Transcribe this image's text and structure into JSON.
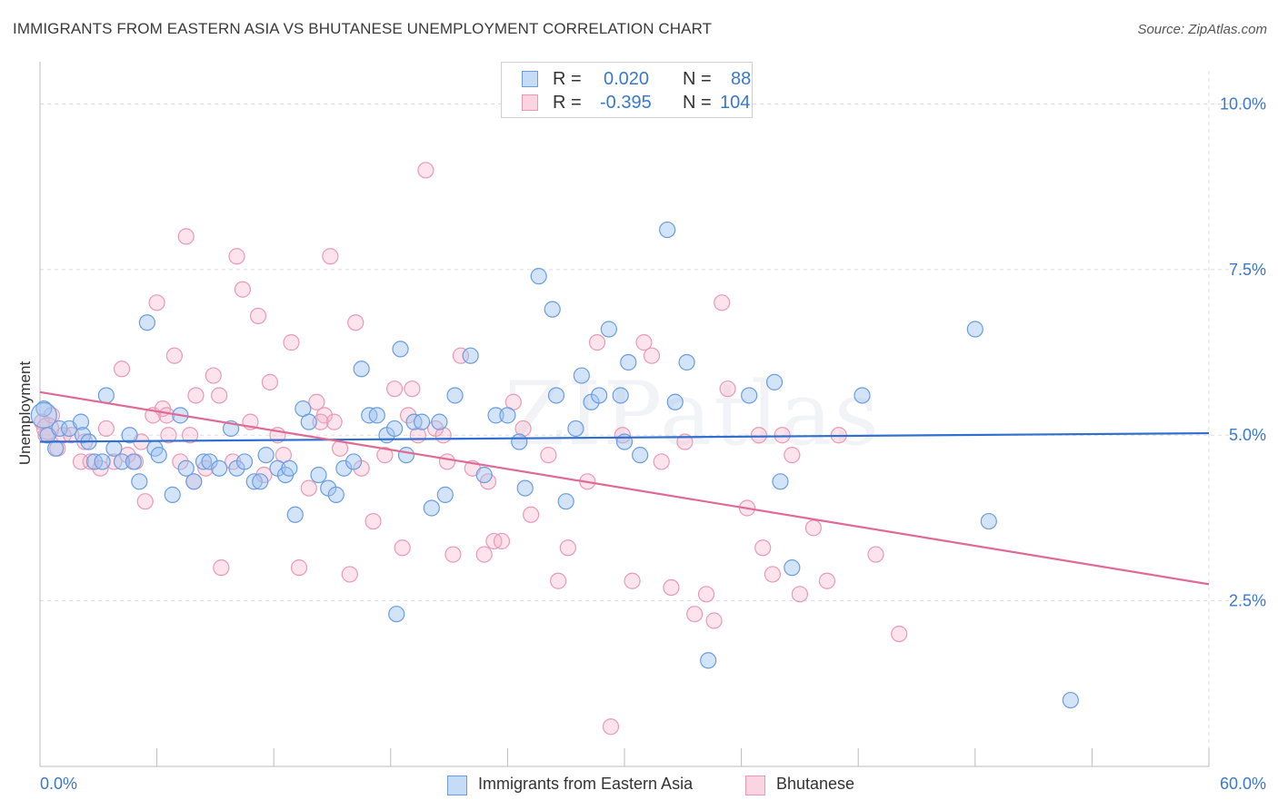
{
  "title": "IMMIGRANTS FROM EASTERN ASIA VS BHUTANESE UNEMPLOYMENT CORRELATION CHART",
  "source": "Source: ZipAtlas.com",
  "watermark": "ZIPatlas",
  "colors": {
    "blue_fill": "rgba(160,196,240,0.45)",
    "blue_stroke": "#6a9de0",
    "blue_line": "#2f6fd0",
    "pink_fill": "rgba(246,176,200,0.35)",
    "pink_stroke": "#e89ab4",
    "pink_line": "#e06a94",
    "grid": "#dedede",
    "tick_label": "#3a78d0"
  },
  "legend_top": [
    {
      "r_label": "R =",
      "r_value": "0.020",
      "n_label": "N =",
      "n_value": "88"
    },
    {
      "r_label": "R =",
      "r_value": "-0.395",
      "n_label": "N =",
      "n_value": "104"
    }
  ],
  "chart_data": {
    "type": "scatter",
    "title": "IMMIGRANTS FROM EASTERN ASIA VS BHUTANESE UNEMPLOYMENT CORRELATION CHART",
    "xlabel": "",
    "ylabel": "Unemployment",
    "xlim": [
      0,
      60
    ],
    "ylim": [
      0,
      10.5
    ],
    "x_tick_labels": [
      "0.0%",
      "60.0%"
    ],
    "y_ticks": [
      2.5,
      5.0,
      7.5,
      10.0
    ],
    "y_tick_labels": [
      "2.5%",
      "5.0%",
      "7.5%",
      "10.0%"
    ],
    "grid": true,
    "legend_position": "bottom",
    "series": [
      {
        "name": "Immigrants from Eastern Asia",
        "trend": {
          "x": [
            0,
            60
          ],
          "y": [
            4.9,
            5.03
          ]
        },
        "points": [
          [
            0.2,
            5.4
          ],
          [
            0.4,
            5.0
          ],
          [
            0.8,
            4.8
          ],
          [
            1.0,
            5.1
          ],
          [
            1.5,
            5.1
          ],
          [
            2.1,
            5.2
          ],
          [
            2.2,
            5.0
          ],
          [
            2.5,
            4.9
          ],
          [
            2.8,
            4.6
          ],
          [
            3.2,
            4.6
          ],
          [
            3.4,
            5.6
          ],
          [
            3.8,
            4.8
          ],
          [
            4.2,
            4.6
          ],
          [
            4.6,
            5.0
          ],
          [
            4.8,
            4.6
          ],
          [
            5.1,
            4.3
          ],
          [
            5.5,
            6.7
          ],
          [
            5.9,
            4.8
          ],
          [
            6.1,
            4.7
          ],
          [
            6.8,
            4.1
          ],
          [
            7.2,
            5.3
          ],
          [
            7.5,
            4.5
          ],
          [
            7.9,
            4.3
          ],
          [
            8.4,
            4.6
          ],
          [
            8.7,
            4.6
          ],
          [
            9.2,
            4.5
          ],
          [
            9.8,
            5.1
          ],
          [
            10.1,
            4.5
          ],
          [
            10.5,
            4.6
          ],
          [
            11.0,
            4.3
          ],
          [
            11.3,
            4.3
          ],
          [
            11.6,
            4.7
          ],
          [
            12.2,
            4.5
          ],
          [
            12.6,
            4.4
          ],
          [
            13.1,
            3.8
          ],
          [
            13.5,
            5.4
          ],
          [
            13.8,
            5.2
          ],
          [
            14.3,
            4.4
          ],
          [
            14.8,
            4.2
          ],
          [
            15.2,
            4.1
          ],
          [
            15.6,
            4.5
          ],
          [
            16.1,
            4.6
          ],
          [
            16.5,
            6.0
          ],
          [
            16.9,
            5.3
          ],
          [
            17.3,
            5.3
          ],
          [
            17.8,
            5.0
          ],
          [
            18.2,
            5.1
          ],
          [
            18.5,
            6.3
          ],
          [
            18.8,
            4.7
          ],
          [
            19.2,
            5.2
          ],
          [
            19.6,
            5.2
          ],
          [
            20.1,
            3.9
          ],
          [
            20.8,
            4.1
          ],
          [
            21.3,
            5.6
          ],
          [
            22.1,
            6.2
          ],
          [
            22.8,
            4.4
          ],
          [
            23.4,
            5.3
          ],
          [
            24.0,
            5.3
          ],
          [
            24.6,
            4.9
          ],
          [
            24.9,
            4.2
          ],
          [
            25.6,
            7.4
          ],
          [
            26.3,
            6.9
          ],
          [
            27.0,
            4.0
          ],
          [
            27.5,
            5.1
          ],
          [
            27.8,
            5.9
          ],
          [
            28.3,
            5.5
          ],
          [
            28.7,
            5.6
          ],
          [
            29.2,
            6.6
          ],
          [
            29.8,
            5.6
          ],
          [
            30.0,
            4.9
          ],
          [
            30.2,
            6.1
          ],
          [
            30.8,
            4.7
          ],
          [
            32.2,
            8.1
          ],
          [
            32.6,
            5.5
          ],
          [
            33.2,
            6.1
          ],
          [
            34.3,
            1.6
          ],
          [
            36.4,
            5.6
          ],
          [
            37.7,
            5.8
          ],
          [
            38.0,
            4.3
          ],
          [
            38.6,
            3.0
          ],
          [
            42.2,
            5.6
          ],
          [
            48.0,
            6.6
          ],
          [
            48.7,
            3.7
          ],
          [
            52.9,
            1.0
          ],
          [
            18.3,
            2.3
          ],
          [
            20.5,
            5.2
          ],
          [
            12.8,
            4.5
          ],
          [
            26.5,
            5.6
          ]
        ]
      },
      {
        "name": "Bhutanese",
        "trend": {
          "x": [
            0,
            60
          ],
          "y": [
            5.65,
            2.75
          ]
        },
        "points": [
          [
            0.1,
            5.2
          ],
          [
            0.3,
            5.0
          ],
          [
            0.6,
            5.3
          ],
          [
            0.9,
            4.8
          ],
          [
            1.2,
            5.0
          ],
          [
            1.6,
            5.0
          ],
          [
            2.1,
            4.6
          ],
          [
            2.6,
            4.6
          ],
          [
            3.1,
            4.5
          ],
          [
            3.4,
            5.1
          ],
          [
            3.8,
            4.6
          ],
          [
            4.2,
            6.0
          ],
          [
            4.5,
            4.7
          ],
          [
            4.9,
            4.6
          ],
          [
            5.2,
            4.9
          ],
          [
            5.4,
            4.0
          ],
          [
            5.8,
            5.3
          ],
          [
            6.0,
            7.0
          ],
          [
            6.3,
            5.4
          ],
          [
            6.6,
            5.0
          ],
          [
            6.9,
            6.2
          ],
          [
            7.2,
            4.6
          ],
          [
            7.5,
            8.0
          ],
          [
            7.7,
            5.0
          ],
          [
            7.9,
            4.3
          ],
          [
            8.0,
            5.6
          ],
          [
            8.5,
            4.5
          ],
          [
            8.9,
            5.9
          ],
          [
            9.2,
            5.6
          ],
          [
            9.3,
            3.0
          ],
          [
            9.9,
            4.6
          ],
          [
            10.1,
            7.7
          ],
          [
            10.4,
            7.2
          ],
          [
            10.8,
            5.2
          ],
          [
            11.2,
            6.8
          ],
          [
            11.5,
            4.4
          ],
          [
            11.8,
            5.8
          ],
          [
            12.2,
            5.0
          ],
          [
            12.5,
            4.7
          ],
          [
            12.9,
            6.4
          ],
          [
            13.3,
            3.0
          ],
          [
            13.8,
            4.2
          ],
          [
            14.2,
            5.5
          ],
          [
            14.6,
            5.3
          ],
          [
            14.9,
            7.7
          ],
          [
            15.1,
            5.2
          ],
          [
            15.4,
            4.8
          ],
          [
            15.9,
            2.9
          ],
          [
            16.2,
            6.7
          ],
          [
            16.5,
            4.5
          ],
          [
            17.1,
            3.7
          ],
          [
            17.7,
            4.7
          ],
          [
            18.2,
            5.7
          ],
          [
            18.6,
            3.3
          ],
          [
            19.1,
            5.7
          ],
          [
            19.4,
            5.0
          ],
          [
            19.8,
            9.0
          ],
          [
            20.3,
            5.1
          ],
          [
            20.7,
            5.0
          ],
          [
            21.2,
            3.2
          ],
          [
            21.6,
            6.2
          ],
          [
            22.2,
            4.5
          ],
          [
            22.8,
            3.2
          ],
          [
            23.3,
            3.4
          ],
          [
            23.7,
            3.4
          ],
          [
            24.3,
            5.5
          ],
          [
            24.8,
            5.1
          ],
          [
            25.2,
            3.8
          ],
          [
            26.1,
            4.7
          ],
          [
            26.6,
            2.8
          ],
          [
            27.1,
            3.3
          ],
          [
            28.1,
            4.3
          ],
          [
            28.6,
            6.4
          ],
          [
            29.3,
            0.6
          ],
          [
            29.9,
            5.0
          ],
          [
            30.4,
            2.8
          ],
          [
            31.0,
            6.4
          ],
          [
            31.4,
            6.2
          ],
          [
            31.9,
            4.6
          ],
          [
            32.4,
            2.7
          ],
          [
            33.1,
            4.9
          ],
          [
            33.6,
            2.3
          ],
          [
            34.2,
            2.6
          ],
          [
            34.6,
            2.2
          ],
          [
            35.0,
            7.0
          ],
          [
            35.3,
            5.7
          ],
          [
            36.3,
            3.9
          ],
          [
            37.1,
            3.3
          ],
          [
            37.6,
            2.9
          ],
          [
            38.1,
            5.0
          ],
          [
            38.6,
            4.7
          ],
          [
            39.0,
            2.6
          ],
          [
            39.7,
            3.6
          ],
          [
            40.4,
            2.8
          ],
          [
            41.0,
            5.0
          ],
          [
            42.9,
            3.2
          ],
          [
            44.1,
            2.0
          ],
          [
            18.9,
            5.3
          ],
          [
            6.5,
            5.3
          ],
          [
            23.0,
            4.3
          ],
          [
            2.3,
            4.9
          ],
          [
            14.4,
            5.2
          ],
          [
            20.9,
            4.6
          ],
          [
            36.9,
            5.0
          ]
        ]
      }
    ]
  }
}
